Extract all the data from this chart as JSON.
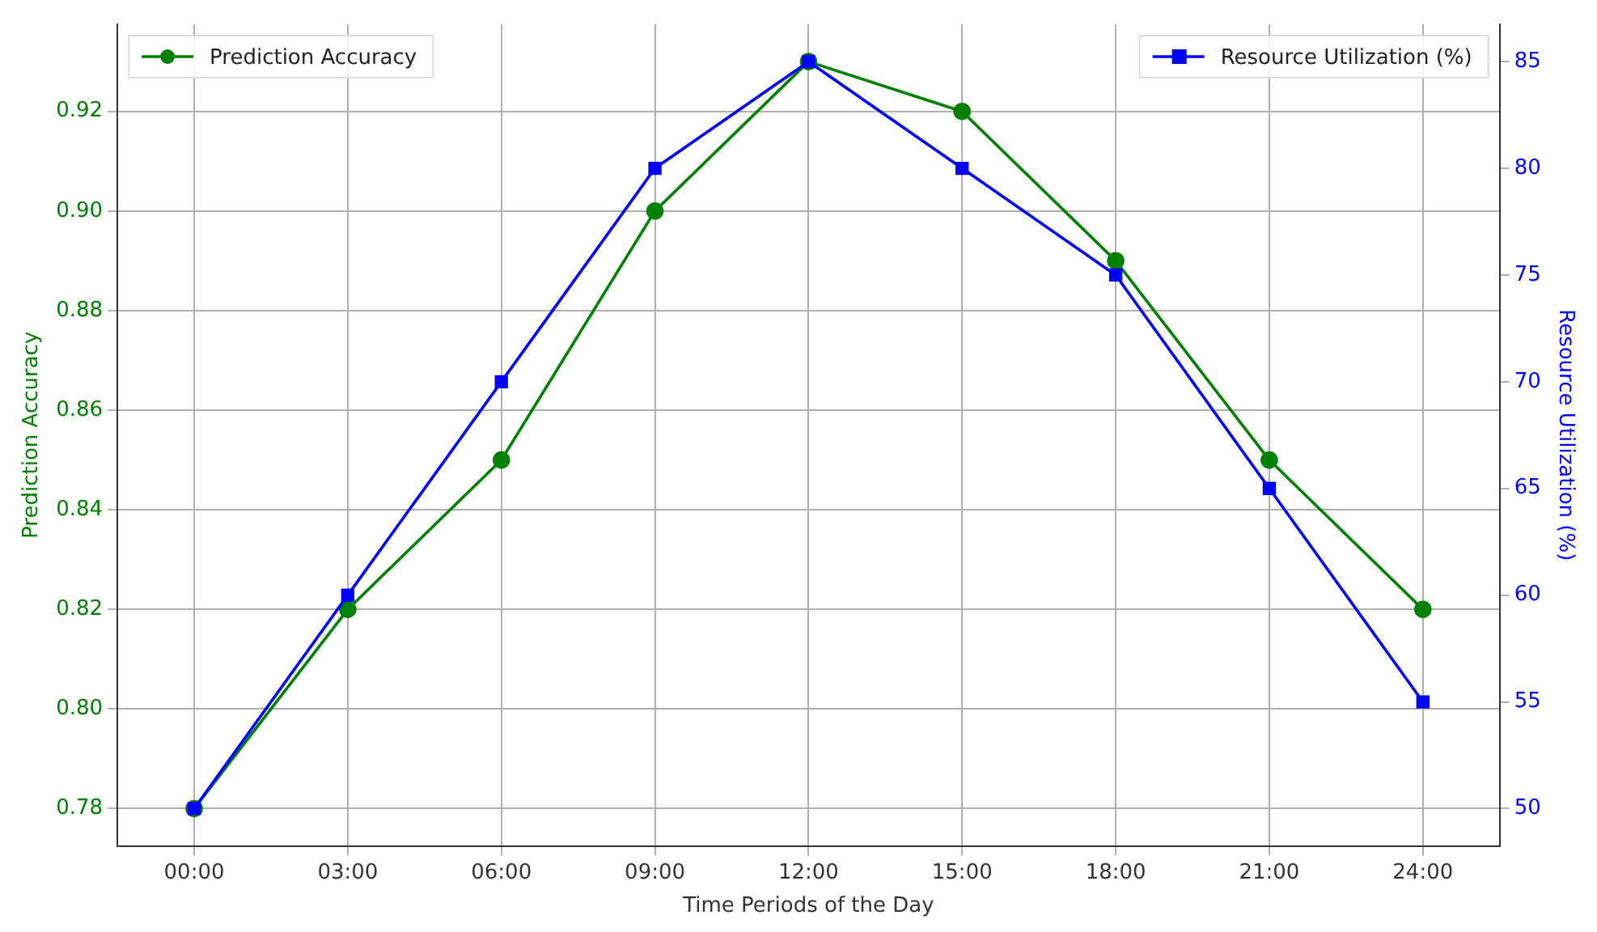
{
  "chart_data": {
    "type": "line",
    "xlabel": "Time Periods of the Day",
    "ylabel": "Prediction Accuracy",
    "y2label": "Resource Utilization (%)",
    "categories": [
      "00:00",
      "03:00",
      "06:00",
      "09:00",
      "12:00",
      "15:00",
      "18:00",
      "21:00",
      "24:00"
    ],
    "series": [
      {
        "name": "Prediction Accuracy",
        "color": "#008000",
        "marker": "circle",
        "values": [
          0.78,
          0.82,
          0.85,
          0.9,
          0.93,
          0.92,
          0.89,
          0.85,
          0.82
        ]
      },
      {
        "name": "Resource Utilization (%)",
        "color": "#0000ff",
        "marker": "square",
        "axis": "y2",
        "values": [
          50,
          60,
          70,
          80,
          85,
          80,
          75,
          65,
          55
        ]
      }
    ],
    "ylim": [
      0.7725,
      0.9375
    ],
    "yticks": [
      0.78,
      {
        "value": 0.8,
        "label": "0.80"
      },
      0.82,
      0.84,
      0.86,
      0.88,
      {
        "value": 0.9,
        "label": "0.90"
      },
      0.92
    ],
    "y2lim": [
      48.25,
      86.75
    ],
    "y2ticks": [
      50,
      55,
      60,
      65,
      70,
      75,
      80,
      85
    ],
    "grid": true,
    "legend": "top",
    "line_style": "solid"
  }
}
